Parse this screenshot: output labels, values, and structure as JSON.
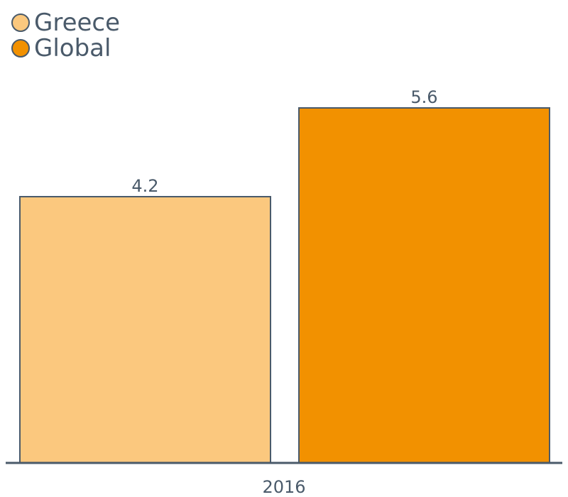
{
  "chart_data": {
    "type": "bar",
    "categories": [
      "2016"
    ],
    "series": [
      {
        "name": "Greece",
        "values": [
          4.2
        ],
        "color": "#fbc87e"
      },
      {
        "name": "Global",
        "values": [
          5.6
        ],
        "color": "#f29100"
      }
    ],
    "ylim": [
      0,
      5.6
    ],
    "grid": false,
    "legend_position": "top-left"
  },
  "colors": {
    "text": "#4a5a6a",
    "outline": "#4a5a6a"
  }
}
